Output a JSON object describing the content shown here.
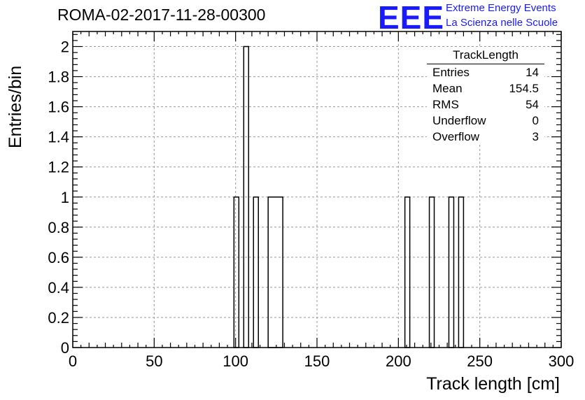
{
  "header": {
    "title": "ROMA-02-2017-11-28-00300",
    "logo_text": "EEE",
    "logo_line1": "Extreme Energy Events",
    "logo_line2": "La Scienza nelle Scuole"
  },
  "stats_box": {
    "title": "TrackLength",
    "rows": [
      {
        "label": "Entries",
        "value": "14"
      },
      {
        "label": "Mean",
        "value": "154.5"
      },
      {
        "label": "RMS",
        "value": "54"
      },
      {
        "label": "Underflow",
        "value": "0"
      },
      {
        "label": "Overflow",
        "value": "3"
      }
    ]
  },
  "chart_data": {
    "type": "bar",
    "title": "ROMA-02-2017-11-28-00300",
    "xlabel": "Track length [cm]",
    "ylabel": "Entries/bin",
    "xlim": [
      0,
      300
    ],
    "ylim": [
      0,
      2.1
    ],
    "grid": true,
    "xticks": [
      0,
      50,
      100,
      150,
      200,
      250,
      300
    ],
    "xtick_labels": [
      "0",
      "50",
      "100",
      "150",
      "200",
      "250",
      "300"
    ],
    "yticks": [
      0,
      0.2,
      0.4,
      0.6,
      0.8,
      1,
      1.2,
      1.4,
      1.6,
      1.8,
      2
    ],
    "ytick_labels": [
      "0",
      "0.2",
      "0.4",
      "0.6",
      "0.8",
      "1",
      "1.2",
      "1.4",
      "1.6",
      "1.8",
      "2"
    ],
    "bin_width": 3,
    "bins": [
      {
        "x0": 99,
        "x1": 102,
        "value": 1
      },
      {
        "x0": 105,
        "x1": 108,
        "value": 2
      },
      {
        "x0": 111,
        "x1": 114,
        "value": 1
      },
      {
        "x0": 120,
        "x1": 129,
        "value": 1
      },
      {
        "x0": 204,
        "x1": 207,
        "value": 1
      },
      {
        "x0": 219,
        "x1": 222,
        "value": 1
      },
      {
        "x0": 231,
        "x1": 234,
        "value": 1
      },
      {
        "x0": 237,
        "x1": 240,
        "value": 1
      }
    ]
  }
}
